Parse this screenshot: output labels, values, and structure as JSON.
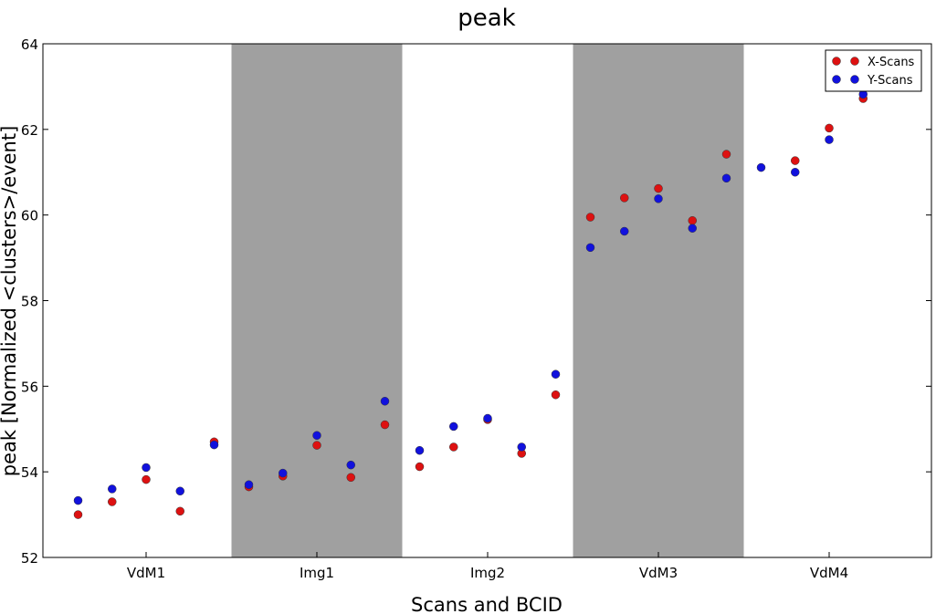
{
  "chart_data": {
    "type": "scatter",
    "title": "peak",
    "xlabel": "Scans and BCID",
    "ylabel": "peak [Normalized <clusters>/event]",
    "ylim": [
      52,
      64
    ],
    "yticks": [
      52,
      54,
      56,
      58,
      60,
      62,
      64
    ],
    "grid": false,
    "legend_position": "top-right",
    "categories": [
      "VdM1",
      "Img1",
      "Img2",
      "VdM3",
      "VdM4"
    ],
    "shaded_groups": [
      "Img1",
      "VdM3"
    ],
    "points_per_group": 5,
    "colors": {
      "x_scans": "#dd1111",
      "y_scans": "#1111dd",
      "shade": "#a0a0a0"
    },
    "series": [
      {
        "name": "X-Scans",
        "values": [
          53.0,
          53.3,
          53.82,
          53.08,
          54.7,
          53.65,
          53.9,
          54.62,
          53.87,
          55.1,
          54.12,
          54.58,
          55.22,
          54.43,
          55.8,
          59.95,
          60.4,
          60.62,
          59.87,
          61.42,
          null,
          61.27,
          62.03,
          62.72,
          null
        ]
      },
      {
        "name": "Y-Scans",
        "values": [
          53.33,
          53.6,
          54.1,
          53.55,
          54.63,
          53.7,
          53.97,
          54.85,
          54.16,
          55.65,
          54.5,
          55.06,
          55.25,
          54.58,
          56.28,
          59.24,
          59.62,
          60.38,
          59.69,
          60.86,
          61.11,
          61.0,
          61.76,
          62.82,
          null
        ]
      }
    ]
  }
}
